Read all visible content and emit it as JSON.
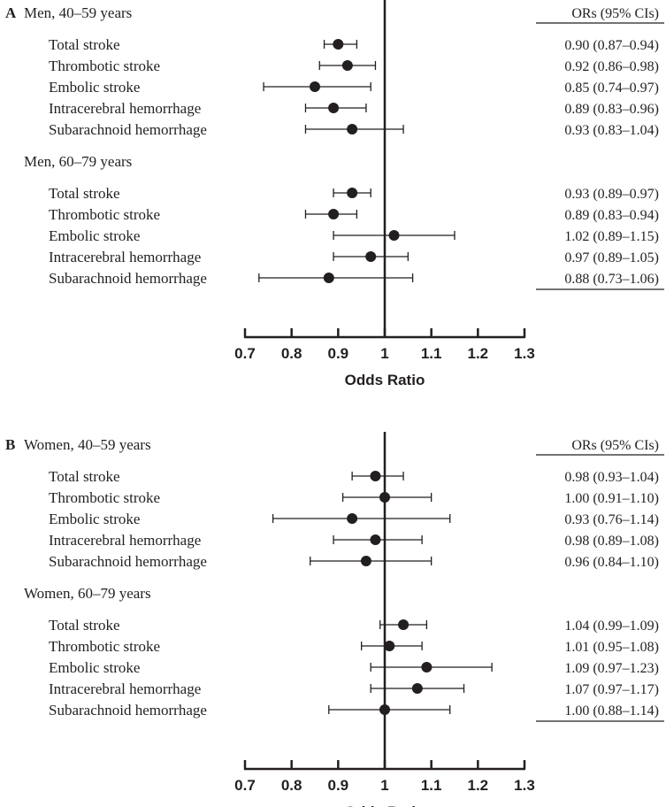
{
  "chart_data": [
    {
      "type": "forest",
      "panel_label": "A",
      "xlabel": "Odds Ratio",
      "xlim": [
        0.7,
        1.3
      ],
      "xticks": [
        "0.7",
        "0.8",
        "0.9",
        "1",
        "1.1",
        "1.2",
        "1.3"
      ],
      "reference_line": 1,
      "ci_column_header": "ORs (95% CIs)",
      "groups": [
        {
          "name": "Men, 40–59 years",
          "rows": [
            {
              "label": "Total stroke",
              "or": 0.9,
              "lo": 0.87,
              "hi": 0.94,
              "text": "0.90 (0.87–0.94)"
            },
            {
              "label": "Thrombotic stroke",
              "or": 0.92,
              "lo": 0.86,
              "hi": 0.98,
              "text": "0.92 (0.86–0.98)"
            },
            {
              "label": "Embolic stroke",
              "or": 0.85,
              "lo": 0.74,
              "hi": 0.97,
              "text": "0.85 (0.74–0.97)"
            },
            {
              "label": "Intracerebral hemorrhage",
              "or": 0.89,
              "lo": 0.83,
              "hi": 0.96,
              "text": "0.89 (0.83–0.96)"
            },
            {
              "label": "Subarachnoid hemorrhage",
              "or": 0.93,
              "lo": 0.83,
              "hi": 1.04,
              "text": "0.93 (0.83–1.04)"
            }
          ]
        },
        {
          "name": "Men, 60–79 years",
          "rows": [
            {
              "label": "Total stroke",
              "or": 0.93,
              "lo": 0.89,
              "hi": 0.97,
              "text": "0.93 (0.89–0.97)"
            },
            {
              "label": "Thrombotic stroke",
              "or": 0.89,
              "lo": 0.83,
              "hi": 0.94,
              "text": "0.89 (0.83–0.94)"
            },
            {
              "label": "Embolic stroke",
              "or": 1.02,
              "lo": 0.89,
              "hi": 1.15,
              "text": "1.02 (0.89–1.15)"
            },
            {
              "label": "Intracerebral hemorrhage",
              "or": 0.97,
              "lo": 0.89,
              "hi": 1.05,
              "text": "0.97 (0.89–1.05)"
            },
            {
              "label": "Subarachnoid hemorrhage",
              "or": 0.88,
              "lo": 0.73,
              "hi": 1.06,
              "text": "0.88 (0.73–1.06)"
            }
          ]
        }
      ]
    },
    {
      "type": "forest",
      "panel_label": "B",
      "xlabel": "Odds Ratio",
      "xlim": [
        0.7,
        1.3
      ],
      "xticks": [
        "0.7",
        "0.8",
        "0.9",
        "1",
        "1.1",
        "1.2",
        "1.3"
      ],
      "reference_line": 1,
      "ci_column_header": "ORs (95% CIs)",
      "groups": [
        {
          "name": "Women, 40–59 years",
          "rows": [
            {
              "label": "Total stroke",
              "or": 0.98,
              "lo": 0.93,
              "hi": 1.04,
              "text": "0.98 (0.93–1.04)"
            },
            {
              "label": "Thrombotic stroke",
              "or": 1.0,
              "lo": 0.91,
              "hi": 1.1,
              "text": "1.00 (0.91–1.10)"
            },
            {
              "label": "Embolic stroke",
              "or": 0.93,
              "lo": 0.76,
              "hi": 1.14,
              "text": "0.93 (0.76–1.14)"
            },
            {
              "label": "Intracerebral hemorrhage",
              "or": 0.98,
              "lo": 0.89,
              "hi": 1.08,
              "text": "0.98 (0.89–1.08)"
            },
            {
              "label": "Subarachnoid hemorrhage",
              "or": 0.96,
              "lo": 0.84,
              "hi": 1.1,
              "text": "0.96 (0.84–1.10)"
            }
          ]
        },
        {
          "name": "Women, 60–79 years",
          "rows": [
            {
              "label": "Total stroke",
              "or": 1.04,
              "lo": 0.99,
              "hi": 1.09,
              "text": "1.04 (0.99–1.09)"
            },
            {
              "label": "Thrombotic stroke",
              "or": 1.01,
              "lo": 0.95,
              "hi": 1.08,
              "text": "1.01 (0.95–1.08)"
            },
            {
              "label": "Embolic stroke",
              "or": 1.09,
              "lo": 0.97,
              "hi": 1.23,
              "text": "1.09 (0.97–1.23)"
            },
            {
              "label": "Intracerebral hemorrhage",
              "or": 1.07,
              "lo": 0.97,
              "hi": 1.17,
              "text": "1.07 (0.97–1.17)"
            },
            {
              "label": "Subarachnoid hemorrhage",
              "or": 1.0,
              "lo": 0.88,
              "hi": 1.14,
              "text": "1.00 (0.88–1.14)"
            }
          ]
        }
      ]
    }
  ],
  "colors": {
    "marker": "#231f20",
    "line": "#231f20",
    "text": "#231f20"
  }
}
